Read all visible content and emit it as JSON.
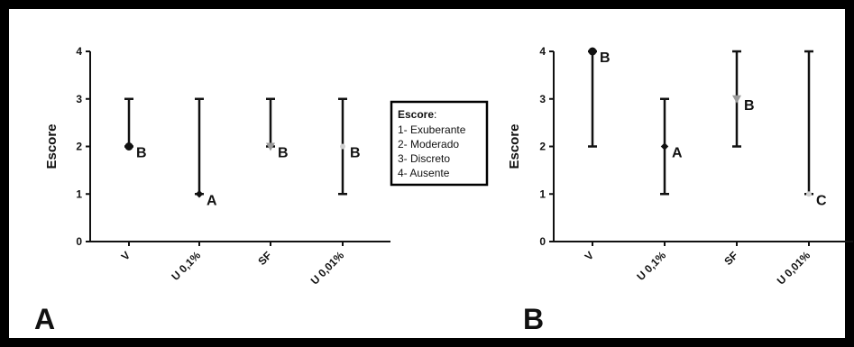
{
  "chart_data": [
    {
      "type": "scatter",
      "panel_label": "A",
      "ylabel": "Escore",
      "xlabel": "",
      "ylim": [
        0,
        4
      ],
      "yticks": [
        "0",
        "1",
        "2",
        "3",
        "4"
      ],
      "categories": [
        "V",
        "U 0,1%",
        "SF",
        "U 0,01%"
      ],
      "median": [
        2,
        1,
        2,
        2
      ],
      "min": [
        2,
        1,
        2,
        1
      ],
      "max": [
        3,
        3,
        3,
        3
      ],
      "group_letters": [
        "B",
        "A",
        "B",
        "B"
      ],
      "marker_colors": [
        "#111111",
        "#111111",
        "#9a9a9a",
        "#d0d0d0"
      ]
    },
    {
      "type": "scatter",
      "panel_label": "B",
      "ylabel": "Escore",
      "xlabel": "",
      "ylim": [
        0,
        4
      ],
      "yticks": [
        "0",
        "1",
        "2",
        "3",
        "4"
      ],
      "categories": [
        "V",
        "U 0,1%",
        "SF",
        "U 0,01%"
      ],
      "median": [
        4,
        2,
        3,
        1
      ],
      "min": [
        2,
        1,
        2,
        1
      ],
      "max": [
        4,
        3,
        4,
        4
      ],
      "group_letters": [
        "B",
        "A",
        "B",
        "C"
      ],
      "marker_colors": [
        "#111111",
        "#111111",
        "#9a9a9a",
        "#d0d0d0"
      ]
    }
  ],
  "legend": {
    "title": "Escore",
    "items": [
      "1- Exuberante",
      "2- Moderado",
      "3- Discreto",
      "4- Ausente"
    ]
  },
  "colors": {
    "frame": "#000000",
    "background": "#ffffff",
    "ink": "#111111"
  }
}
